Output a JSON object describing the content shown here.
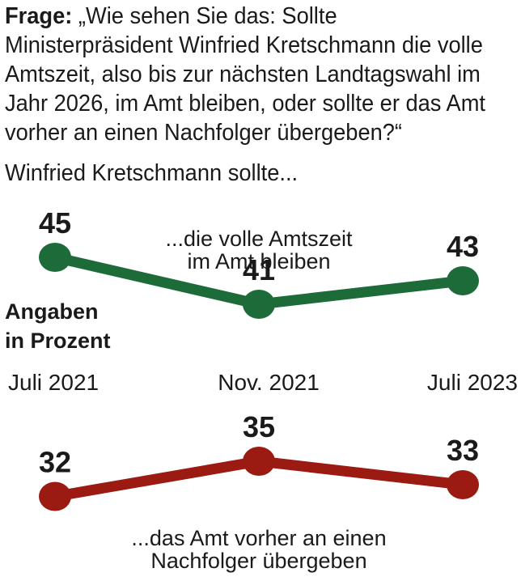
{
  "question": {
    "lead": "Frage:",
    "text": " „Wie sehen Sie das: Sollte Ministerpräsident Winfried Kretschmann die volle Amtszeit, also bis zur nächsten Landtagswahl im Jahr 2026, im Amt bleiben, oder sollte er das Amt vorher an einen Nachfolger übergeben?“"
  },
  "subtitle": "Winfried Kretschmann sollte...",
  "unit_label": [
    "Angaben",
    "in Prozent"
  ],
  "chart_data": {
    "type": "line",
    "categories": [
      "Juli 2021",
      "Nov. 2021",
      "Juli 2023"
    ],
    "series": [
      {
        "name": "...die volle Amtszeit im Amt bleiben",
        "name_lines": [
          "...die volle Amtszeit",
          "im Amt bleiben"
        ],
        "values": [
          45,
          41,
          43
        ],
        "color": "#1e6b3a"
      },
      {
        "name": "...das Amt vorher an einen Nachfolger übergeben",
        "name_lines": [
          "...das Amt vorher an einen",
          "Nachfolger übergeben"
        ],
        "values": [
          32,
          35,
          33
        ],
        "color": "#9b1b12"
      }
    ],
    "ylim": [
      31,
      46
    ],
    "legend": "inline",
    "grid": false
  }
}
